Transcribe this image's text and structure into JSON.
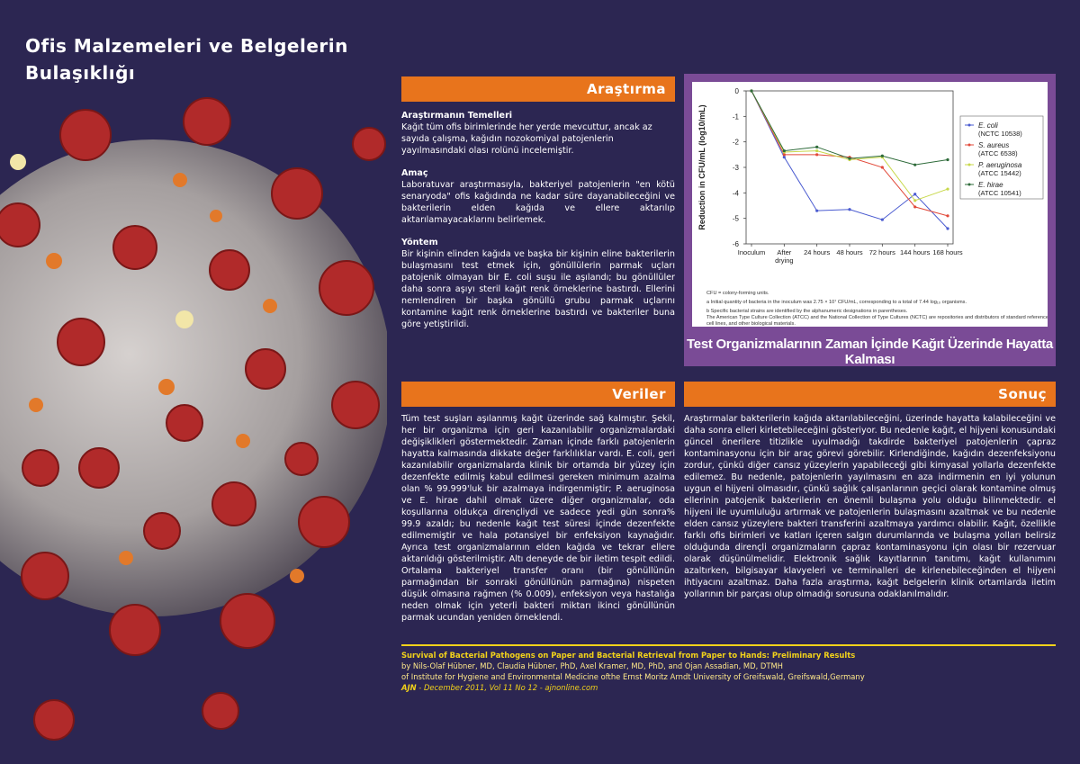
{
  "title_line1": "Ofis Malzemeleri ve Belgelerin",
  "title_line2": "Bulaşıklığı",
  "arastirma": {
    "heading": "Araştırma",
    "temel_h": "Araştırmanın Temelleri",
    "temel_p": "Kağıt tüm ofis birimlerinde her yerde mevcuttur, ancak az sayıda çalışma, kağıdın nozokomiyal patojenlerin yayılmasındaki olası rolünü incelemiştir.",
    "amac_h": "Amaç",
    "amac_p": "Laboratuvar araştırmasıyla, bakteriyel patojenlerin \"en kötü senaryoda\" ofis kağıdında ne kadar süre dayanabileceğini ve bakterilerin elden kağıda ve ellere aktarılıp aktarılamayacaklarını belirlemek.",
    "yontem_h": "Yöntem",
    "yontem_p": " Bir kişinin elinden kağıda ve başka bir kişinin eline bakterilerin bulaşmasını test etmek için, gönüllülerin parmak uçları patojenik olmayan bir E. coli suşu ile aşılandı; bu gönüllüler daha sonra aşıyı steril kağıt renk örneklerine bastırdı. Ellerini nemlendiren bir başka gönüllü grubu parmak uçlarını kontamine kağıt renk örneklerine bastırdı ve bakteriler buna göre yetiştirildi."
  },
  "veriler": {
    "heading": "Veriler",
    "p": "Tüm test suşları aşılanmış kağıt üzerinde sağ kalmıştır. Şekil, her bir organizma için geri kazanılabilir organizmalardaki değişiklikleri göstermektedir. Zaman içinde farklı patojenlerin hayatta kalmasında dikkate değer farklılıklar vardı. E. coli, geri kazanılabilir organizmalarda klinik bir ortamda bir yüzey için dezenfekte edilmiş kabul edilmesi gereken minimum azalma olan % 99.999'luk bir azalmaya indirgenmiştir; P. aeruginosa ve E. hirae dahil olmak üzere diğer organizmalar, oda koşullarına oldukça dirençliydi ve sadece yedi gün sonra% 99.9 azaldı; bu nedenle kağıt test süresi içinde dezenfekte edilmemiştir ve hala potansiyel bir enfeksiyon kaynağıdır. Ayrıca test organizmalarının elden kağıda ve tekrar ellere aktarıldığı gösterilmiştir. Altı deneyde de bir iletim tespit edildi. Ortalama bakteriyel transfer oranı (bir gönüllünün parmağından bir sonraki gönüllünün parmağına) nispeten düşük olmasına rağmen (% 0.009), enfeksiyon veya hastalığa neden olmak için yeterli bakteri miktarı ikinci gönüllünün parmak ucundan yeniden örneklendi."
  },
  "sonuc": {
    "heading": "Sonuç",
    "p": "Araştırmalar bakterilerin kağıda aktarılabileceğini, üzerinde hayatta kalabileceğini ve daha sonra elleri kirletebileceğini gösteriyor. Bu nedenle kağıt, el hijyeni konusundaki güncel önerilere titizlikle uyulmadığı takdirde bakteriyel patojenlerin çapraz kontaminasyonu için bir araç görevi görebilir. Kirlendiğinde, kağıdın dezenfeksiyonu zordur, çünkü diğer cansız yüzeylerin yapabileceği gibi kimyasal yollarla dezenfekte edilemez. Bu nedenle, patojenlerin yayılmasını en aza indirmenin en iyi yolunun uygun el hijyeni olmasıdır, çünkü sağlık çalışanlarının geçici olarak kontamine olmuş ellerinin patojenik bakterilerin en önemli bulaşma yolu olduğu bilinmektedir. el hijyeni ile uyumluluğu artırmak ve patojenlerin bulaşmasını azaltmak ve bu nedenle elden cansız yüzeylere bakteri transferini azaltmaya yardımcı olabilir. Kağıt, özellikle farklı ofis birimleri ve katları içeren salgın durumlarında ve bulaşma yolları belirsiz olduğunda dirençli organizmaların çapraz kontaminasyonu için olası bir rezervuar olarak düşünülmelidir. Elektronik sağlık kayıtlarının tanıtımı, kağıt kullanımını azaltırken, bilgisayar klavyeleri ve terminalleri de kirlenebileceğinden el hijyeni ihtiyacını azaltmaz. Daha fazla araştırma, kağıt belgelerin klinik ortamlarda iletim yollarının bir parçası olup olmadığı sorusuna odaklanılmalıdır."
  },
  "chart_caption": "Test Organizmalarının Zaman İçinde Kağıt Üzerinde Hayatta Kalması",
  "chart_data": {
    "type": "line",
    "ylabel": "Reduction in CFU/mL (log10/mL)",
    "ylim": [
      -6,
      0
    ],
    "categories": [
      "Inoculum",
      "After drying",
      "24 hours",
      "48 hours",
      "72 hours",
      "144 hours",
      "168 hours"
    ],
    "series": [
      {
        "name": "E. coli",
        "strain": "(NCTC 10538)",
        "color": "#4a5bd0",
        "values": [
          0,
          -2.6,
          -4.7,
          -4.65,
          -5.05,
          -4.05,
          -5.4
        ]
      },
      {
        "name": "S. aureus",
        "strain": "(ATCC 6538)",
        "color": "#e24a3a",
        "values": [
          0,
          -2.5,
          -2.5,
          -2.6,
          -3.0,
          -4.55,
          -4.9
        ]
      },
      {
        "name": "P. aeruginosa",
        "strain": "(ATCC 15442)",
        "color": "#c8d84a",
        "values": [
          0,
          -2.4,
          -2.35,
          -2.7,
          -2.6,
          -4.3,
          -3.85
        ]
      },
      {
        "name": "E. hirae",
        "strain": "(ATCC 10541)",
        "color": "#2e6b3a",
        "values": [
          0,
          -2.35,
          -2.2,
          -2.65,
          -2.55,
          -2.9,
          -2.7
        ]
      }
    ],
    "footnotes": [
      "CFU = colony-forming units.",
      "a Initial quantity of bacteria in the inoculum was 2.75 × 10⁷ CFU/mL, corresponding to a total of 7.44 log₁₀ organisms.",
      "b Specific bacterial strains are identified by the alphanumeric designations in parentheses. The American Type Culture Collection (ATCC) and the National Collection of Type Cultures (NCTC) are repositories and distributors of standard reference microorganisms, cell lines, and other biological materials."
    ]
  },
  "reference": {
    "title": "Survival of Bacterial Pathogens on Paper and Bacterial Retrieval from Paper to Hands: Preliminary Results",
    "authors": "by  Nils-Olaf Hübner, MD, Claudia Hübner, PhD, Axel Kramer, MD, PhD, and Ojan Assadian, MD, DTMH",
    "institute": "of Institute for Hygiene and Environmental Medicine ofthe Ernst Moritz Arndt University of Greifswald, Greifswald,Germany",
    "journal_abbr": "AJN",
    "journal_rest": " - December 2011, Vol 11 No 12 - ajnonline.com"
  }
}
